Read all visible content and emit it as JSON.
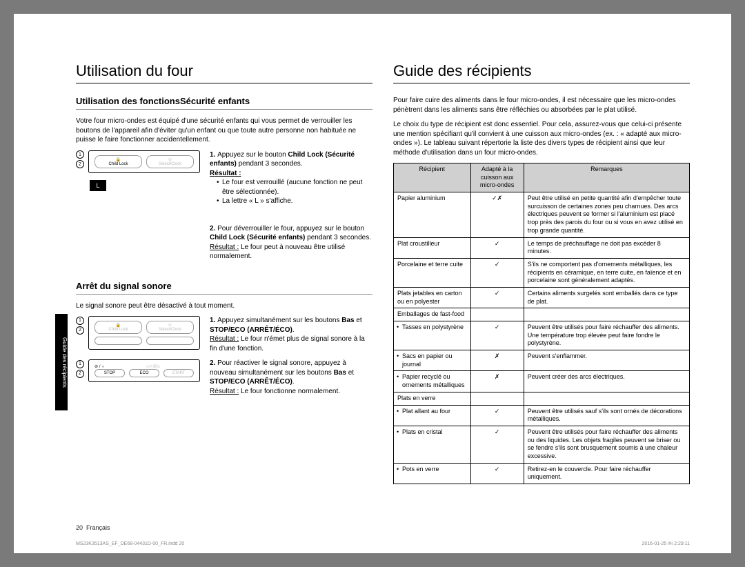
{
  "sideTab": "Guide des récipients",
  "left": {
    "h1": "Utilisation du four",
    "sec1": {
      "h2": "Utilisation des fonctionsSécurité enfants",
      "intro": "Votre four micro-ondes est équipé d'une sécurité enfants qui vous permet de verrouiller les boutons de l'appareil afin d'éviter qu'un enfant ou que toute autre personne non habituée ne puisse le faire fonctionner accidentellement.",
      "panel": {
        "btn1": "Child Lock",
        "btn2": "Select/Clock",
        "lcd": "L"
      },
      "step1a": "Appuyez sur le bouton ",
      "step1b": "Child Lock (Sécurité enfants)",
      "step1c": " pendant 3 secondes.",
      "result": "Résultat :",
      "b1": "Le four est verrouillé (aucune fonction ne peut être sélectionnée).",
      "b2": "La lettre « L » s'affiche.",
      "step2a": "Pour déverrouiller le four, appuyez sur le bouton ",
      "step2b": "Child Lock (Sécurité enfants)",
      "step2c": " pendant 3 secondes.",
      "r2a": "Résultat :",
      "r2b": "  Le four peut à nouveau être utilisé normalement."
    },
    "sec2": {
      "h2": "Arrêt du signal sonore",
      "intro": "Le signal sonore peut être désactivé à tout moment.",
      "step1a": "Appuyez simultanément sur les boutons ",
      "step1b": "Bas",
      "step1c": " et ",
      "step1d": "STOP/ECO (ARRÊT/ÉCO)",
      "step1e": ".",
      "r1a": "Résultat :",
      "r1b": "  Le four n'émet plus de signal sonore à la fin d'une fonction.",
      "step2a": "Pour réactiver le signal sonore, appuyez à nouveau simultanément sur les boutons ",
      "step2b": "Bas",
      "step2c": " et ",
      "step2d": "STOP/ECO (ARRÊT/ÉCO)",
      "step2e": ".",
      "r2a": "Résultat :",
      "r2b": "  Le four fonctionne normalement.",
      "panelA": {
        "btn1": "Child Lock",
        "btn2": "Select/Clock"
      },
      "panelB": {
        "btn1": "STOP",
        "btn2": "ECO",
        "btn3": "START",
        "plus": "/+30s"
      }
    }
  },
  "right": {
    "h1": "Guide des récipients",
    "p1": "Pour faire cuire des aliments dans le four micro-ondes, il est nécessaire que les micro-ondes pénètrent dans les aliments sans être réfléchies ou absorbées par le plat utilisé.",
    "p2": "Le choix du type de récipient est donc essentiel. Pour cela, assurez-vous que celui-ci présente une mention spécifiant qu'il convient à une cuisson aux micro-ondes (ex. : « adapté aux micro-ondes »). Le tableau suivant répertorie la liste des divers types de récipient ainsi que leur méthode d'utilisation dans un four micro-ondes.",
    "table": {
      "headers": [
        "Récipient",
        "Adapté à la cuisson aux micro-ondes",
        "Remarques"
      ],
      "rows": [
        {
          "c1": "Papier aluminium",
          "c2": "✓✗",
          "c3": "Peut être utilisé en petite quantité afin d'empêcher toute surcuisson de certaines zones peu charnues. Des arcs électriques peuvent se former si l'aluminium est placé trop près des parois du four ou si vous en avez utilisé en trop grande quantité."
        },
        {
          "c1": "Plat croustilleur",
          "c2": "✓",
          "c3": "Le temps de préchauffage ne doit pas excéder 8 minutes."
        },
        {
          "c1": "Porcelaine et terre cuite",
          "c2": "✓",
          "c3": "S'ils ne comportent pas d'ornements métalliques, les récipients en céramique, en terre cuite, en faïence et en porcelaine sont généralement adaptés."
        },
        {
          "c1": "Plats jetables en carton ou en polyester",
          "c2": "✓",
          "c3": "Certains aliments surgelés sont emballés dans ce type de plat."
        },
        {
          "c1": "Emballages de fast-food",
          "c2": "",
          "c3": ""
        },
        {
          "c1": "Tasses en polystyrène",
          "sub": true,
          "c2": "✓",
          "c3": "Peuvent être utilisés pour faire réchauffer des aliments. Une température trop élevée peut faire fondre le polystyrène."
        },
        {
          "c1": "Sacs en papier ou journal",
          "sub": true,
          "c2": "✗",
          "c3": "Peuvent s'enflammer."
        },
        {
          "c1": "Papier recyclé ou ornements métalliques",
          "sub": true,
          "c2": "✗",
          "c3": "Peuvent créer des arcs électriques."
        },
        {
          "c1": "Plats en verre",
          "c2": "",
          "c3": ""
        },
        {
          "c1": "Plat allant au four",
          "sub": true,
          "c2": "✓",
          "c3": "Peuvent être utilisés sauf s'ils sont ornés de décorations métalliques."
        },
        {
          "c1": "Plats en cristal",
          "sub": true,
          "c2": "✓",
          "c3": "Peuvent être utilisés pour faire réchauffer des aliments ou des liquides. Les objets fragiles peuvent se briser ou se fendre s'ils sont brusquement soumis à une chaleur excessive."
        },
        {
          "c1": "Pots en verre",
          "sub": true,
          "c2": "✓",
          "c3": "Retirez-en le couvercle. Pour faire réchauffer uniquement."
        }
      ]
    }
  },
  "footer": {
    "page": "20",
    "lang": "Français"
  },
  "meta": {
    "file": "MS23K3513AS_EF_DE68-04431D-00_FR.indd   20",
    "date": "2016-01-25   ￼ 2:29:11"
  }
}
